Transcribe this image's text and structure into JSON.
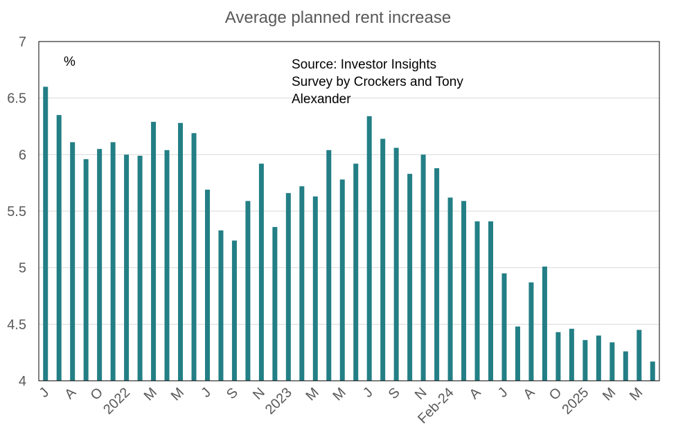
{
  "chart_data": {
    "type": "bar",
    "title": "Average planned rent increase",
    "ylabel": "",
    "xlabel": "",
    "unit_label": "%",
    "annotation_lines": [
      "Source: Investor Insights",
      "Survey by Crockers and Tony",
      "Alexander"
    ],
    "ylim": [
      4,
      7
    ],
    "yticks": [
      "4",
      "4.5",
      "5",
      "5.5",
      "6",
      "6.5",
      "7"
    ],
    "grid": true,
    "bar_color": "#237f85",
    "grid_color": "#d9d9d9",
    "categories": [
      "J",
      "",
      "A",
      "",
      "O",
      "",
      "2022",
      "",
      "M",
      "",
      "M",
      "",
      "J",
      "",
      "S",
      "",
      "N",
      "",
      "2023",
      "",
      "M",
      "",
      "M",
      "",
      "J",
      "",
      "S",
      "",
      "N",
      "",
      "Feb-24",
      "",
      "A",
      "",
      "J",
      "",
      "A",
      "",
      "O",
      "",
      "2025",
      "",
      "M",
      "",
      "M",
      ""
    ],
    "values": [
      6.6,
      6.35,
      6.11,
      5.96,
      6.05,
      6.11,
      6.0,
      5.99,
      6.29,
      6.04,
      6.28,
      6.19,
      5.69,
      5.33,
      5.24,
      5.59,
      5.92,
      5.36,
      5.66,
      5.72,
      5.63,
      6.04,
      5.78,
      5.92,
      6.34,
      6.14,
      6.06,
      5.83,
      6.0,
      5.88,
      5.62,
      5.59,
      5.41,
      5.41,
      4.95,
      4.48,
      4.87,
      5.01,
      4.43,
      4.46,
      4.36,
      4.4,
      4.34,
      4.26,
      4.45,
      4.17
    ]
  }
}
